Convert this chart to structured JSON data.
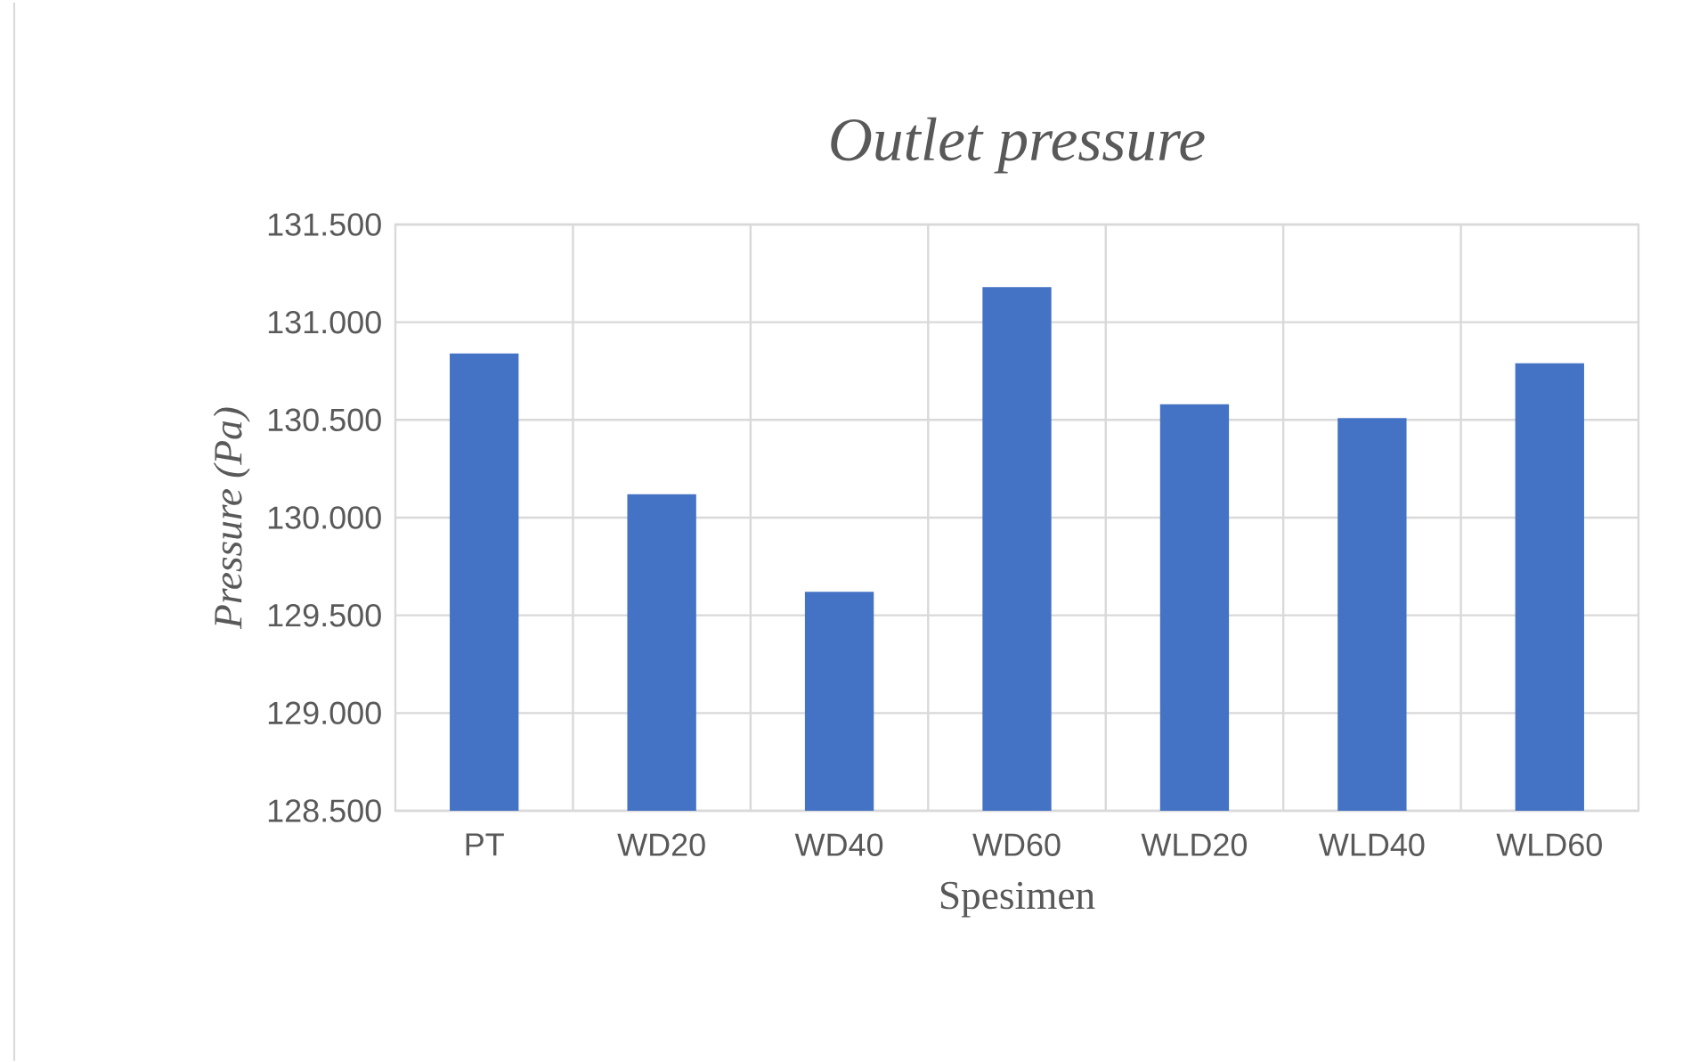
{
  "chart_data": {
    "type": "bar",
    "title": "Outlet pressure",
    "xlabel": "Spesimen",
    "ylabel": "Pressure (Pa)",
    "categories": [
      "PT",
      "WD20",
      "WD40",
      "WD60",
      "WLD20",
      "WLD40",
      "WLD60"
    ],
    "values": [
      130.84,
      130.12,
      129.62,
      131.18,
      130.58,
      130.51,
      130.79
    ],
    "color": "#4472c4",
    "ylim": [
      128.5,
      131.5
    ],
    "yticks": [
      {
        "value": 128.5,
        "label": "128.500"
      },
      {
        "value": 129.0,
        "label": "129.000"
      },
      {
        "value": 129.5,
        "label": "129.500"
      },
      {
        "value": 130.0,
        "label": "130.000"
      },
      {
        "value": 130.5,
        "label": "130.500"
      },
      {
        "value": 131.0,
        "label": "131.000"
      },
      {
        "value": 131.5,
        "label": "131.500"
      }
    ],
    "grid": true
  }
}
